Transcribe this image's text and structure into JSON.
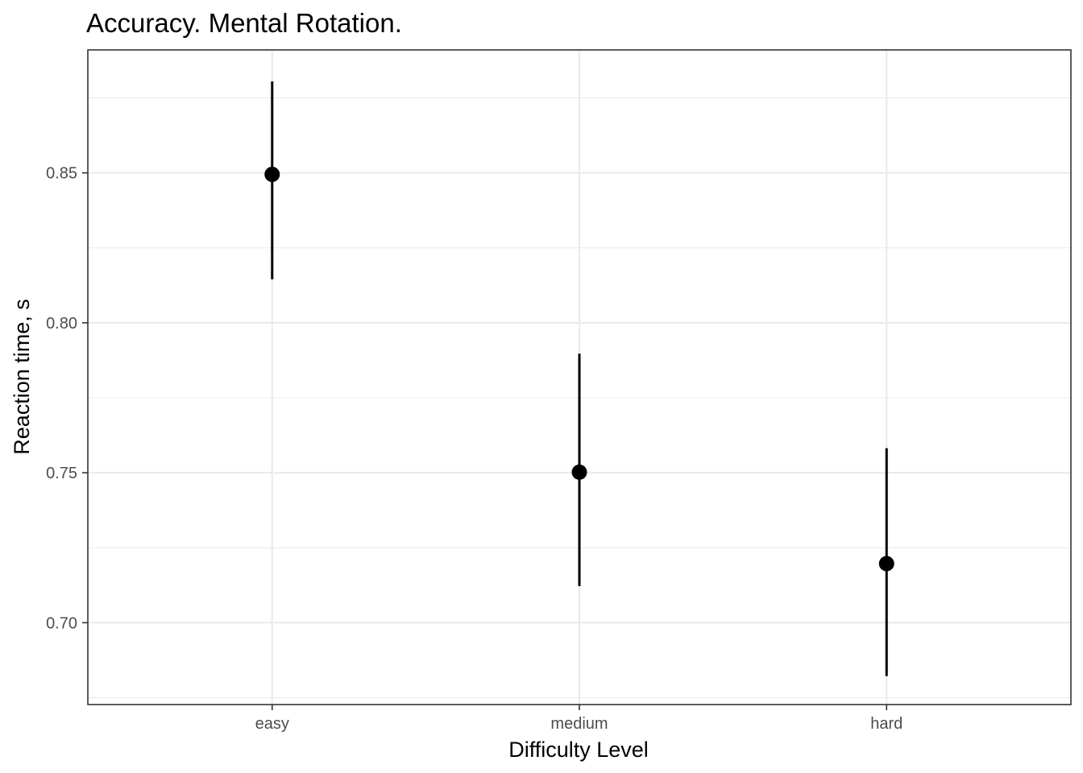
{
  "chart_data": {
    "type": "pointrange",
    "title": "Accuracy. Mental Rotation.",
    "xlabel": "Difficulty Level",
    "ylabel": "Reaction time, s",
    "categories": [
      "easy",
      "medium",
      "hard"
    ],
    "values": [
      0.8495,
      0.7502,
      0.7197
    ],
    "lower": [
      0.8145,
      0.7122,
      0.6822
    ],
    "upper": [
      0.8805,
      0.7897,
      0.7582
    ],
    "ylim": [
      0.6727,
      0.891
    ],
    "yticks": [
      0.7,
      0.75,
      0.8,
      0.85
    ],
    "ytick_labels": [
      "0.70",
      "0.75",
      "0.80",
      "0.85"
    ],
    "y_minor_ticks": [
      0.675,
      0.725,
      0.775,
      0.825,
      0.875
    ],
    "grid": true,
    "legend": "none",
    "colors": {
      "point": "#000000",
      "grid": "#ebebeb",
      "border": "#333333",
      "tick_text": "#4d4d4d"
    }
  }
}
